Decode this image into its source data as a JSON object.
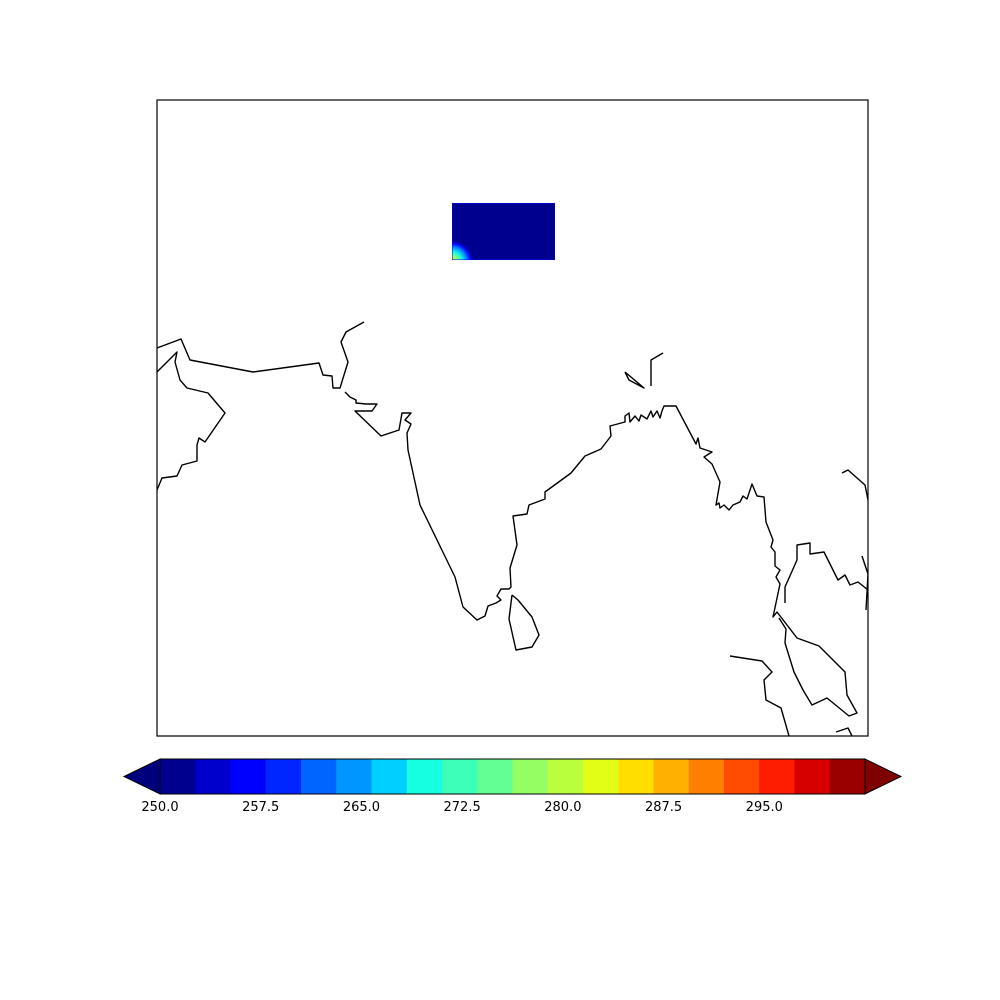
{
  "colorbar": {
    "min": 250.0,
    "max": 302.5,
    "step": 2.5,
    "extend": "both",
    "ticks": [
      {
        "value": 250.0,
        "label": "250.0"
      },
      {
        "value": 257.5,
        "label": "257.5"
      },
      {
        "value": 265.0,
        "label": "265.0"
      },
      {
        "value": 272.5,
        "label": "272.5"
      },
      {
        "value": 280.0,
        "label": "280.0"
      },
      {
        "value": 287.5,
        "label": "287.5"
      },
      {
        "value": 295.0,
        "label": "295.0"
      }
    ],
    "under_color": "#00007f",
    "over_color": "#7f0000",
    "colors": [
      "#00008f",
      "#0000cc",
      "#0000ff",
      "#0026ff",
      "#0064ff",
      "#0096ff",
      "#00cfff",
      "#16ffe1",
      "#3dffba",
      "#63ff94",
      "#94ff63",
      "#baff3d",
      "#e1ff16",
      "#ffde00",
      "#ffb000",
      "#ff8000",
      "#ff4c00",
      "#ff1d00",
      "#d60000",
      "#990000"
    ]
  },
  "colormap": "jet",
  "data_patch": {
    "fill_color": "#00008f",
    "corner_colors": [
      "#0000ff",
      "#0096ff",
      "#16ffe1",
      "#94ff63",
      "#e1ff16"
    ]
  },
  "map": {
    "coastline_color": "#000000",
    "region": "Indian subcontinent and Bay of Bengal"
  }
}
